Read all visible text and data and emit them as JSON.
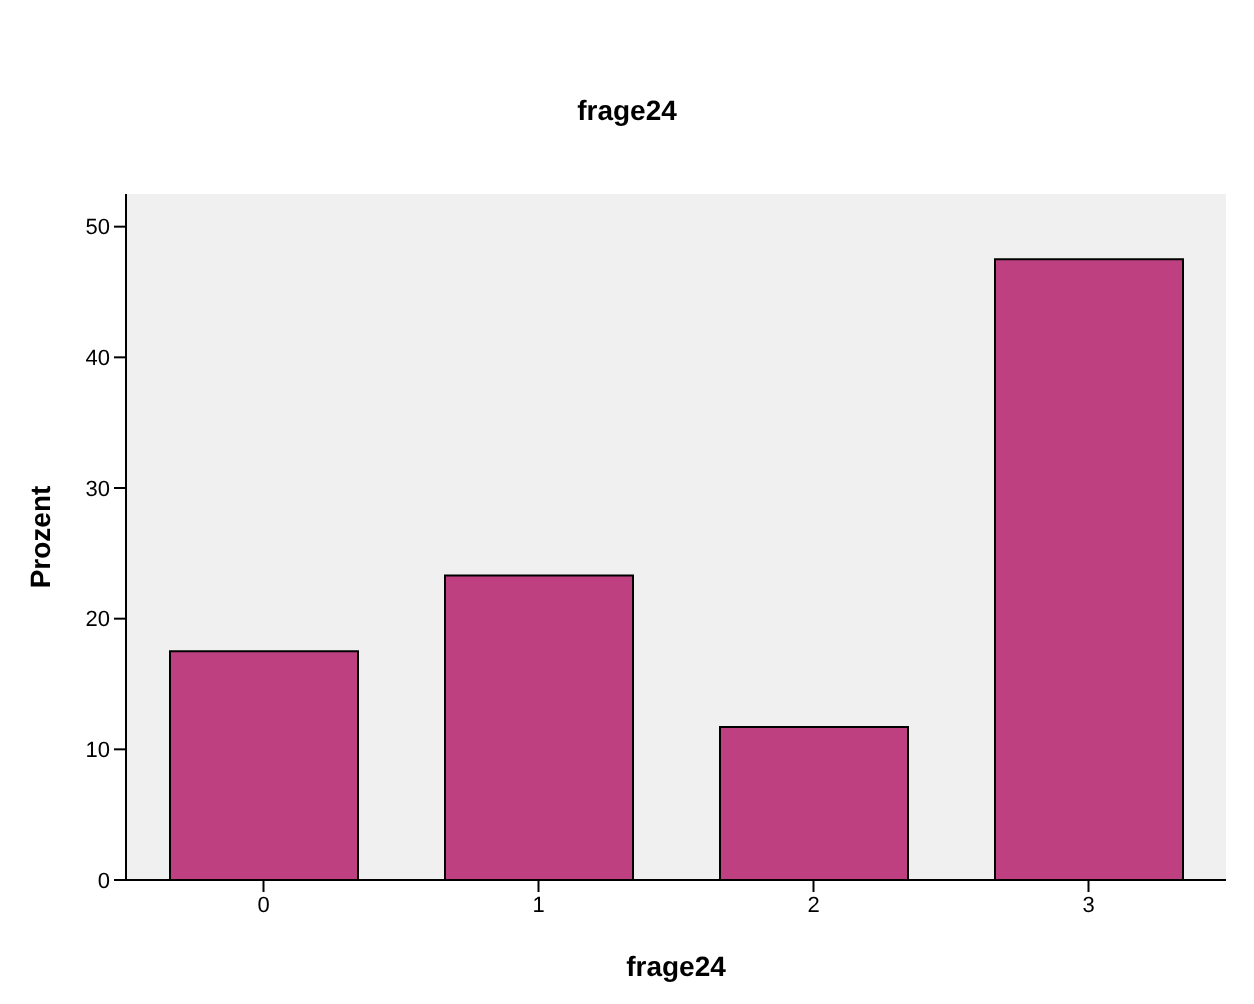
{
  "chart_data": {
    "type": "bar",
    "title": "frage24",
    "xlabel": "frage24",
    "ylabel": "Prozent",
    "categories": [
      "0",
      "1",
      "2",
      "3"
    ],
    "values": [
      17.5,
      23.3,
      11.7,
      47.5
    ],
    "color": "#be4080",
    "ylim": [
      0,
      52.5
    ],
    "yticks": [
      0,
      10,
      20,
      30,
      40,
      50
    ],
    "grid": false
  }
}
